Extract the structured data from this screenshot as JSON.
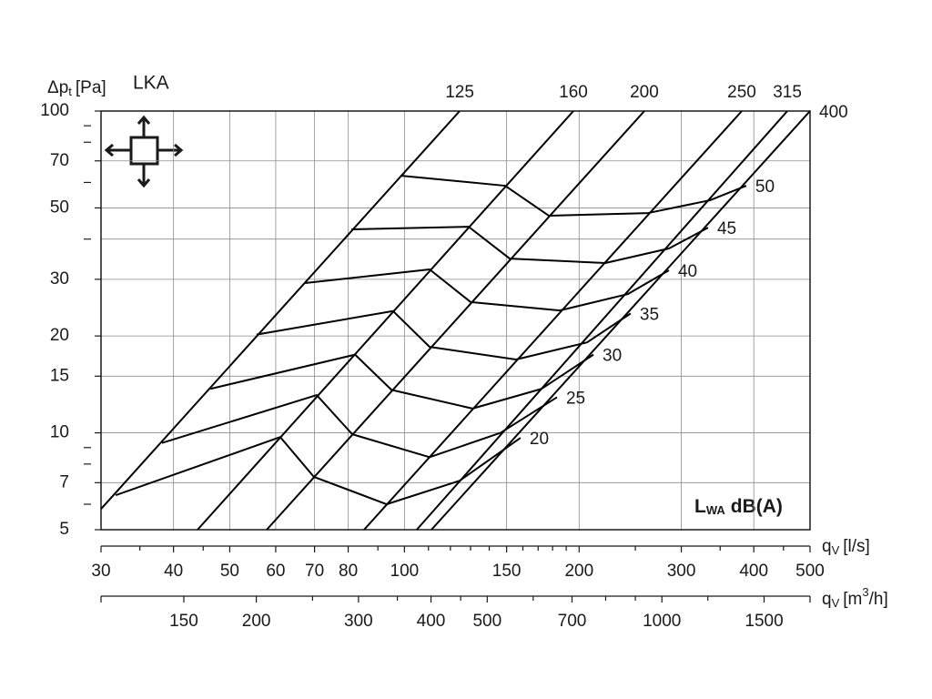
{
  "chart_data": {
    "type": "line",
    "title": "LKA",
    "y_label": {
      "symbol": "Δp",
      "sub": "t",
      "unit": "[Pa]"
    },
    "x_label": {
      "symbol": "q",
      "sub": "V",
      "unit": "[l/s]"
    },
    "x2_label": {
      "symbol": "q",
      "sub": "V",
      "unit_pre": "[m",
      "sup": "3",
      "unit_post": "/h]"
    },
    "annotation": {
      "symbol": "L",
      "sub": "WA",
      "unit": "dB(A)"
    },
    "xscale": "log",
    "yscale": "log",
    "grid": true,
    "color": "#000000",
    "xlim": [
      30,
      500
    ],
    "ylim": [
      5,
      100
    ],
    "xticks": [
      30,
      40,
      50,
      60,
      70,
      80,
      100,
      150,
      200,
      300,
      400,
      500
    ],
    "xminor": [
      35,
      45,
      90,
      110,
      120,
      130,
      140,
      160,
      170,
      180,
      190,
      250,
      350,
      450
    ],
    "xgrid": [
      40,
      50,
      60,
      70,
      80,
      100,
      150,
      200,
      300,
      400
    ],
    "x2lim": [
      108,
      1800
    ],
    "x2ticks": [
      150,
      200,
      300,
      400,
      500,
      700,
      1000,
      1500
    ],
    "x2minor": [
      250,
      350,
      450,
      600,
      800,
      900,
      1200
    ],
    "yticks": [
      5,
      7,
      10,
      15,
      20,
      30,
      50,
      70,
      100
    ],
    "yminor": [
      6,
      8,
      9,
      40,
      60,
      80,
      90
    ],
    "ygrid": [
      7,
      10,
      15,
      20,
      30,
      40,
      50,
      70
    ],
    "duct_series": [
      {
        "name": "125",
        "x": [
          30,
          124.5
        ],
        "y": [
          5.8,
          100
        ]
      },
      {
        "name": "160",
        "x": [
          44.0,
          195.5
        ],
        "y": [
          5,
          100
        ]
      },
      {
        "name": "200",
        "x": [
          57.9,
          259.1
        ],
        "y": [
          5,
          100
        ]
      },
      {
        "name": "250",
        "x": [
          85.2,
          381.4
        ],
        "y": [
          5,
          100
        ]
      },
      {
        "name": "315",
        "x": [
          105.0,
          456.9
        ],
        "y": [
          5,
          100
        ]
      },
      {
        "name": "400",
        "x": [
          111.3,
          500
        ],
        "y": [
          5,
          100
        ]
      }
    ],
    "series": [
      {
        "name": "20",
        "x": [
          31.8,
          61.1,
          69.8,
          93.2,
          124.5,
          158.5
        ],
        "y": [
          6.4,
          9.7,
          7.3,
          6.0,
          7.1,
          9.65
        ]
      },
      {
        "name": "25",
        "x": [
          38.2,
          70.6,
          81.3,
          110.5,
          146.4,
          183.2
        ],
        "y": [
          9.3,
          13.1,
          9.9,
          8.4,
          10.0,
          12.9
        ]
      },
      {
        "name": "30",
        "x": [
          46.3,
          82.2,
          95.0,
          131.0,
          172.3,
          211.7
        ],
        "y": [
          13.7,
          17.5,
          13.6,
          11.9,
          13.7,
          17.5
        ]
      },
      {
        "name": "35",
        "x": [
          55.6,
          95.6,
          110.5,
          155.7,
          206.4,
          245.4
        ],
        "y": [
          20.2,
          23.9,
          18.5,
          16.9,
          19.1,
          23.5
        ]
      },
      {
        "name": "40",
        "x": [
          67.4,
          110.5,
          130.0,
          185.2,
          242.8,
          285.6
        ],
        "y": [
          29.2,
          32.2,
          25.5,
          24.0,
          27.0,
          32.0
        ]
      },
      {
        "name": "45",
        "x": [
          81.0,
          129.0,
          151.8,
          221.9,
          285.6,
          333.6
        ],
        "y": [
          42.9,
          43.7,
          34.8,
          33.7,
          37.4,
          43.4
        ]
      },
      {
        "name": "50",
        "x": [
          98.4,
          149.1,
          177.3,
          262.9,
          336,
          388.2
        ],
        "y": [
          63.0,
          58.6,
          47.3,
          48.2,
          52.8,
          58.6
        ]
      }
    ]
  }
}
